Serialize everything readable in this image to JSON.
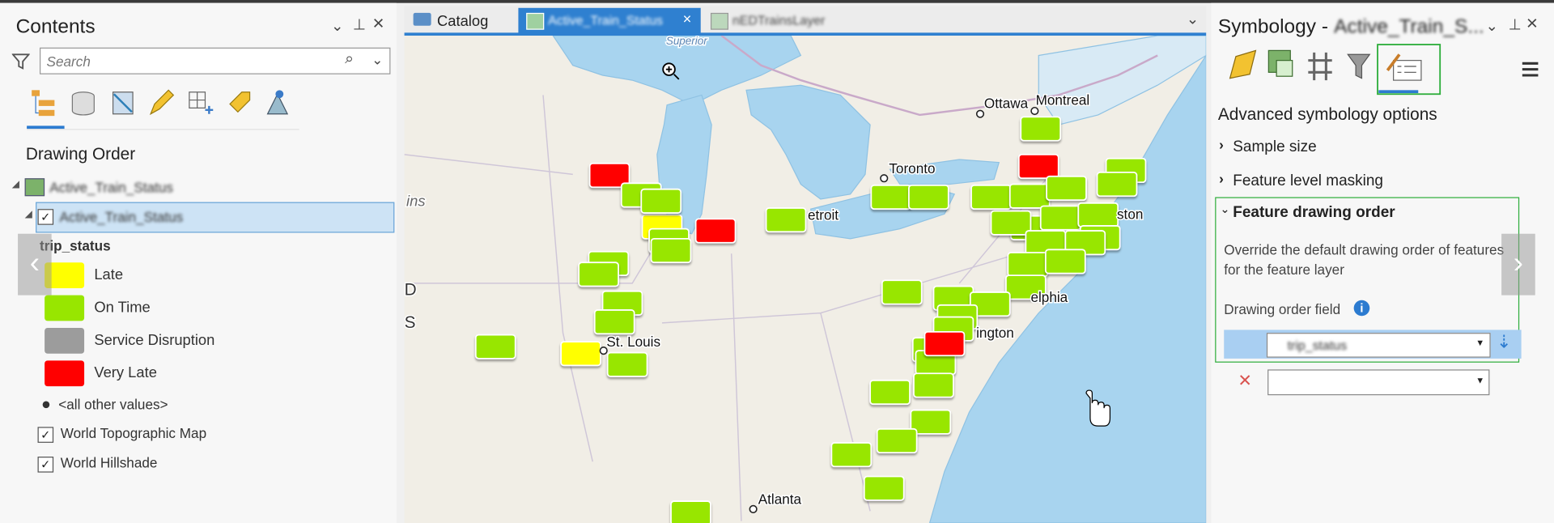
{
  "contents_pane": {
    "title": "Contents",
    "search_placeholder": "Search",
    "section": "Drawing Order",
    "map_name": "Active_Train_Status",
    "layer_name": "Active_Train_Status",
    "field": "trip_status",
    "legend": [
      {
        "label": "Late",
        "color": "#ffff00"
      },
      {
        "label": "On Time",
        "color": "#98e600"
      },
      {
        "label": "Service Disruption",
        "color": "#9c9c9c"
      },
      {
        "label": "Very Late",
        "color": "#ff0000"
      }
    ],
    "other_values": "<all other values>",
    "basemaps": [
      "World Topographic Map",
      "World Hillshade"
    ]
  },
  "tabs": [
    "Catalog",
    "Active_Train_Status",
    "nEDTrainsLayer"
  ],
  "map": {
    "labels": [
      "Superior",
      "Ottawa",
      "Montreal",
      "Toronto",
      "etroit",
      "ston",
      "elphia",
      "ington",
      "St. Louis",
      "Atlanta",
      "ins",
      "D",
      "S"
    ]
  },
  "symbology_pane": {
    "title": "Symbology -",
    "layer": "Active_Train_S...",
    "heading": "Advanced symbology options",
    "sections": [
      "Sample size",
      "Feature level masking",
      "Feature drawing order"
    ],
    "description_lines": [
      "Override the default drawing order of features",
      "for the feature layer"
    ],
    "field_label": "Drawing order field",
    "field_value": "trip_status"
  }
}
